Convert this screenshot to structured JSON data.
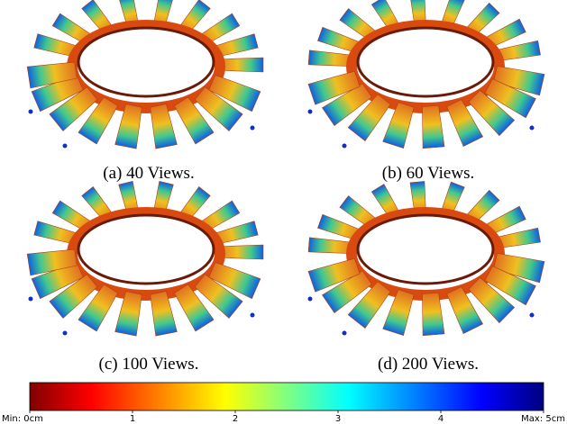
{
  "panels": [
    {
      "caption": "(a) 40 Views."
    },
    {
      "caption": "(b) 60 Views."
    },
    {
      "caption": "(c) 100 Views."
    },
    {
      "caption": "(d) 200 Views."
    }
  ],
  "colorbar": {
    "lim": [
      0,
      5
    ],
    "ticks": [
      {
        "value": 0,
        "label": "Min: 0cm"
      },
      1,
      2,
      3,
      4,
      {
        "value": 5,
        "label": "Max: 5cm"
      }
    ]
  }
}
